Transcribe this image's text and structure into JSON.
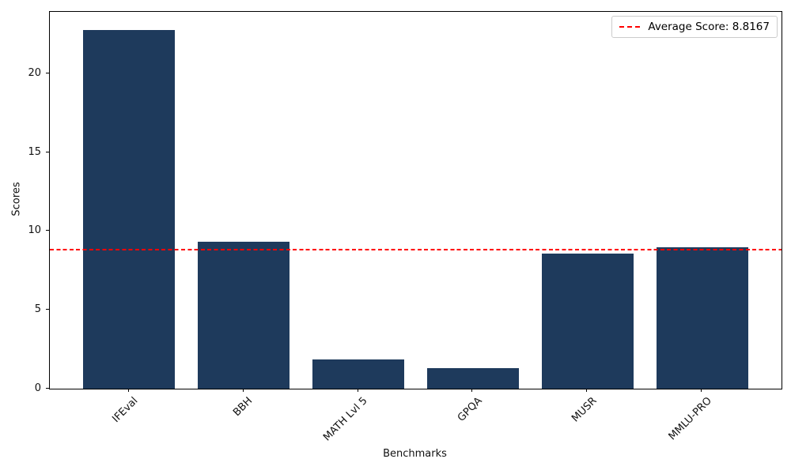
{
  "figure": {
    "type": "matplotlib-style bar chart",
    "background": "#ffffff"
  },
  "chart_data": {
    "type": "bar",
    "title": "",
    "xlabel": "Benchmarks",
    "ylabel": "Scores",
    "categories": [
      "IFEval",
      "BBH",
      "MATH Lvl 5",
      "GPQA",
      "MUSR",
      "MMLU-PRO"
    ],
    "values": [
      22.8,
      9.35,
      1.85,
      1.3,
      8.6,
      9.0
    ],
    "yticks": [
      0,
      5,
      10,
      15,
      20
    ],
    "ylim": [
      0,
      23.94
    ],
    "grid": false,
    "bar_color": "#1e3a5c",
    "average_line": {
      "value": 8.8167,
      "color": "#ff0000",
      "style": "dashed",
      "label": "Average Score: 8.8167"
    },
    "legend_position": "upper right"
  }
}
